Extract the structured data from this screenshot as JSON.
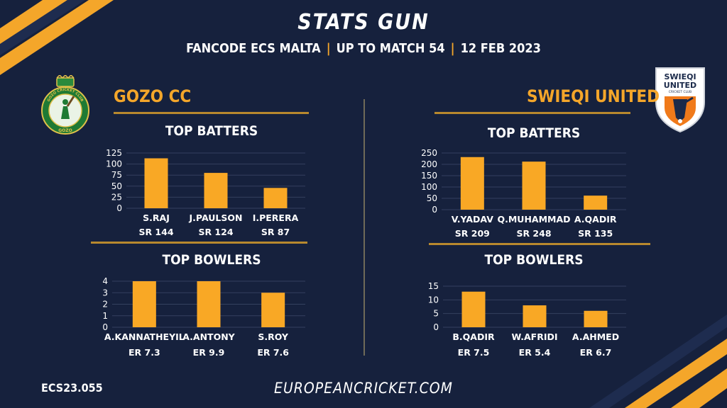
{
  "header": {
    "title": "STATS GUN",
    "subtitle_parts": [
      "FANCODE ECS MALTA",
      "UP TO MATCH  54",
      "12 FEB 2023"
    ],
    "separator": "|"
  },
  "colors": {
    "background": "#16213d",
    "accent": "#f4a62a",
    "bar": "#f9a825",
    "text": "#ffffff"
  },
  "left_team": {
    "name": "GOZO CC",
    "logo": {
      "icon": "gozo-cc-crest-icon",
      "text_top": "GOZO CRICKET CLUB",
      "text_bottom": "GOZO"
    }
  },
  "right_team": {
    "name": "SWIEQI UNITED",
    "logo": {
      "icon": "swieqi-united-shield-icon",
      "text_line1": "SWIEQI",
      "text_line2": "UNITED",
      "text_line3": "CRICKET CLUB"
    }
  },
  "section_titles": {
    "batters": "TOP BATTERS",
    "bowlers": "TOP BOWLERS"
  },
  "chart_data": [
    {
      "id": "gozo-batters",
      "type": "bar",
      "team": "GOZO CC",
      "title": "TOP BATTERS",
      "categories": [
        "S.RAJ",
        "J.PAULSON",
        "I.PERERA"
      ],
      "values": [
        113,
        80,
        46
      ],
      "ylim": [
        0,
        125
      ],
      "yticks": [
        0,
        25,
        50,
        75,
        100,
        125
      ],
      "sublabels": [
        "SR 144",
        "SR 124",
        "SR 87"
      ],
      "grid": true
    },
    {
      "id": "gozo-bowlers",
      "type": "bar",
      "team": "GOZO CC",
      "title": "TOP BOWLERS",
      "categories": [
        "A.KANNATHEYIL",
        "A.ANTONY",
        "S.ROY"
      ],
      "values": [
        4,
        4,
        3
      ],
      "ylim": [
        0,
        4
      ],
      "yticks": [
        0,
        1,
        2,
        3,
        4
      ],
      "sublabels": [
        "ER 7.3",
        "ER 9.9",
        "ER 7.6"
      ],
      "grid": true
    },
    {
      "id": "swieqi-batters",
      "type": "bar",
      "team": "SWIEQI UNITED",
      "title": "TOP BATTERS",
      "categories": [
        "V.YADAV",
        "Q.MUHAMMAD",
        "A.QADIR"
      ],
      "values": [
        232,
        212,
        62
      ],
      "ylim": [
        0,
        250
      ],
      "yticks": [
        0,
        50,
        100,
        150,
        200,
        250
      ],
      "sublabels": [
        "SR 209",
        "SR 248",
        "SR 135"
      ],
      "grid": true
    },
    {
      "id": "swieqi-bowlers",
      "type": "bar",
      "team": "SWIEQI UNITED",
      "title": "TOP BOWLERS",
      "categories": [
        "B.QADIR",
        "W.AFRIDI",
        "A.AHMED"
      ],
      "values": [
        13,
        8,
        6
      ],
      "ylim": [
        0,
        15
      ],
      "yticks": [
        0,
        5,
        10,
        15
      ],
      "sublabels": [
        "ER 7.5",
        "ER 5.4",
        "ER 6.7"
      ],
      "grid": true
    }
  ],
  "footer": {
    "code": "ECS23.055",
    "website": "EUROPEANCRICKET.COM"
  }
}
